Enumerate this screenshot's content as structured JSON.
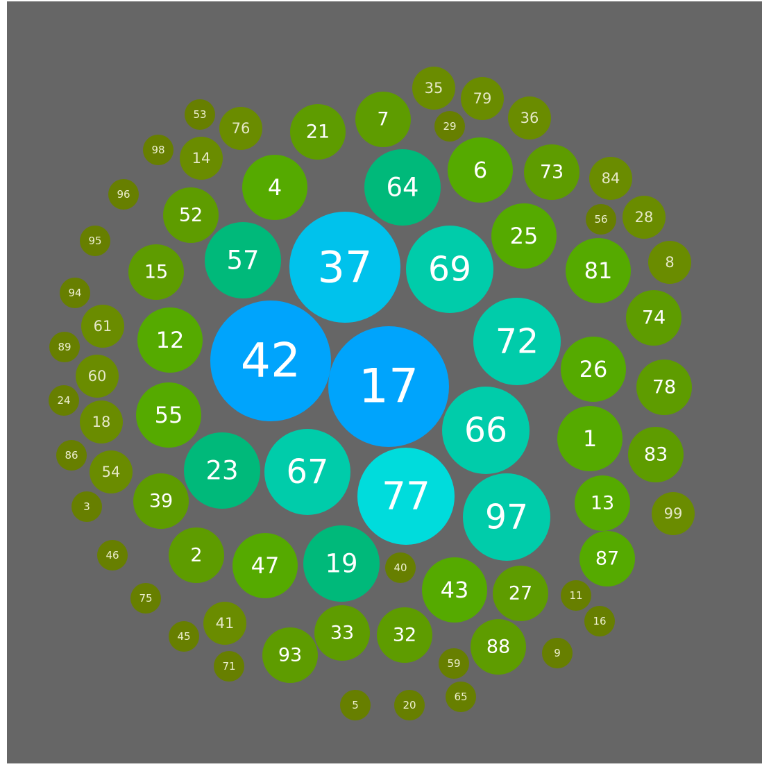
{
  "nodes": [
    {
      "label": 42
    },
    {
      "label": 17
    },
    {
      "label": 37
    },
    {
      "label": 77
    },
    {
      "label": 69
    },
    {
      "label": 72
    },
    {
      "label": 66
    },
    {
      "label": 97
    },
    {
      "label": 67
    },
    {
      "label": 64
    },
    {
      "label": 57
    },
    {
      "label": 23
    },
    {
      "label": 19
    },
    {
      "label": 4
    },
    {
      "label": 6
    },
    {
      "label": 25
    },
    {
      "label": 81
    },
    {
      "label": 26
    },
    {
      "label": 1
    },
    {
      "label": 13
    },
    {
      "label": 87
    },
    {
      "label": 43
    },
    {
      "label": 47
    },
    {
      "label": 55
    },
    {
      "label": 12
    },
    {
      "label": 27
    },
    {
      "label": 88
    },
    {
      "label": 32
    },
    {
      "label": 33
    },
    {
      "label": 93
    },
    {
      "label": 2
    },
    {
      "label": 39
    },
    {
      "label": 15
    },
    {
      "label": 52
    },
    {
      "label": 21
    },
    {
      "label": 7
    },
    {
      "label": 73
    },
    {
      "label": 74
    },
    {
      "label": 78
    },
    {
      "label": 83
    },
    {
      "label": 84
    },
    {
      "label": 28
    },
    {
      "label": 8
    },
    {
      "label": 99
    },
    {
      "label": 36
    },
    {
      "label": 79
    },
    {
      "label": 35
    },
    {
      "label": 76
    },
    {
      "label": 14
    },
    {
      "label": 61
    },
    {
      "label": 60
    },
    {
      "label": 18
    },
    {
      "label": 54
    },
    {
      "label": 41
    },
    {
      "label": 29
    },
    {
      "label": 53
    },
    {
      "label": 98
    },
    {
      "label": 96
    },
    {
      "label": 95
    },
    {
      "label": 94
    },
    {
      "label": 89
    },
    {
      "label": 24
    },
    {
      "label": 86
    },
    {
      "label": 3
    },
    {
      "label": 46
    },
    {
      "label": 75
    },
    {
      "label": 45
    },
    {
      "label": 71
    },
    {
      "label": 5
    },
    {
      "label": 20
    },
    {
      "label": 65
    },
    {
      "label": 59
    },
    {
      "label": 40
    },
    {
      "label": 9
    },
    {
      "label": 11
    },
    {
      "label": 16
    },
    {
      "label": 56
    }
  ]
}
